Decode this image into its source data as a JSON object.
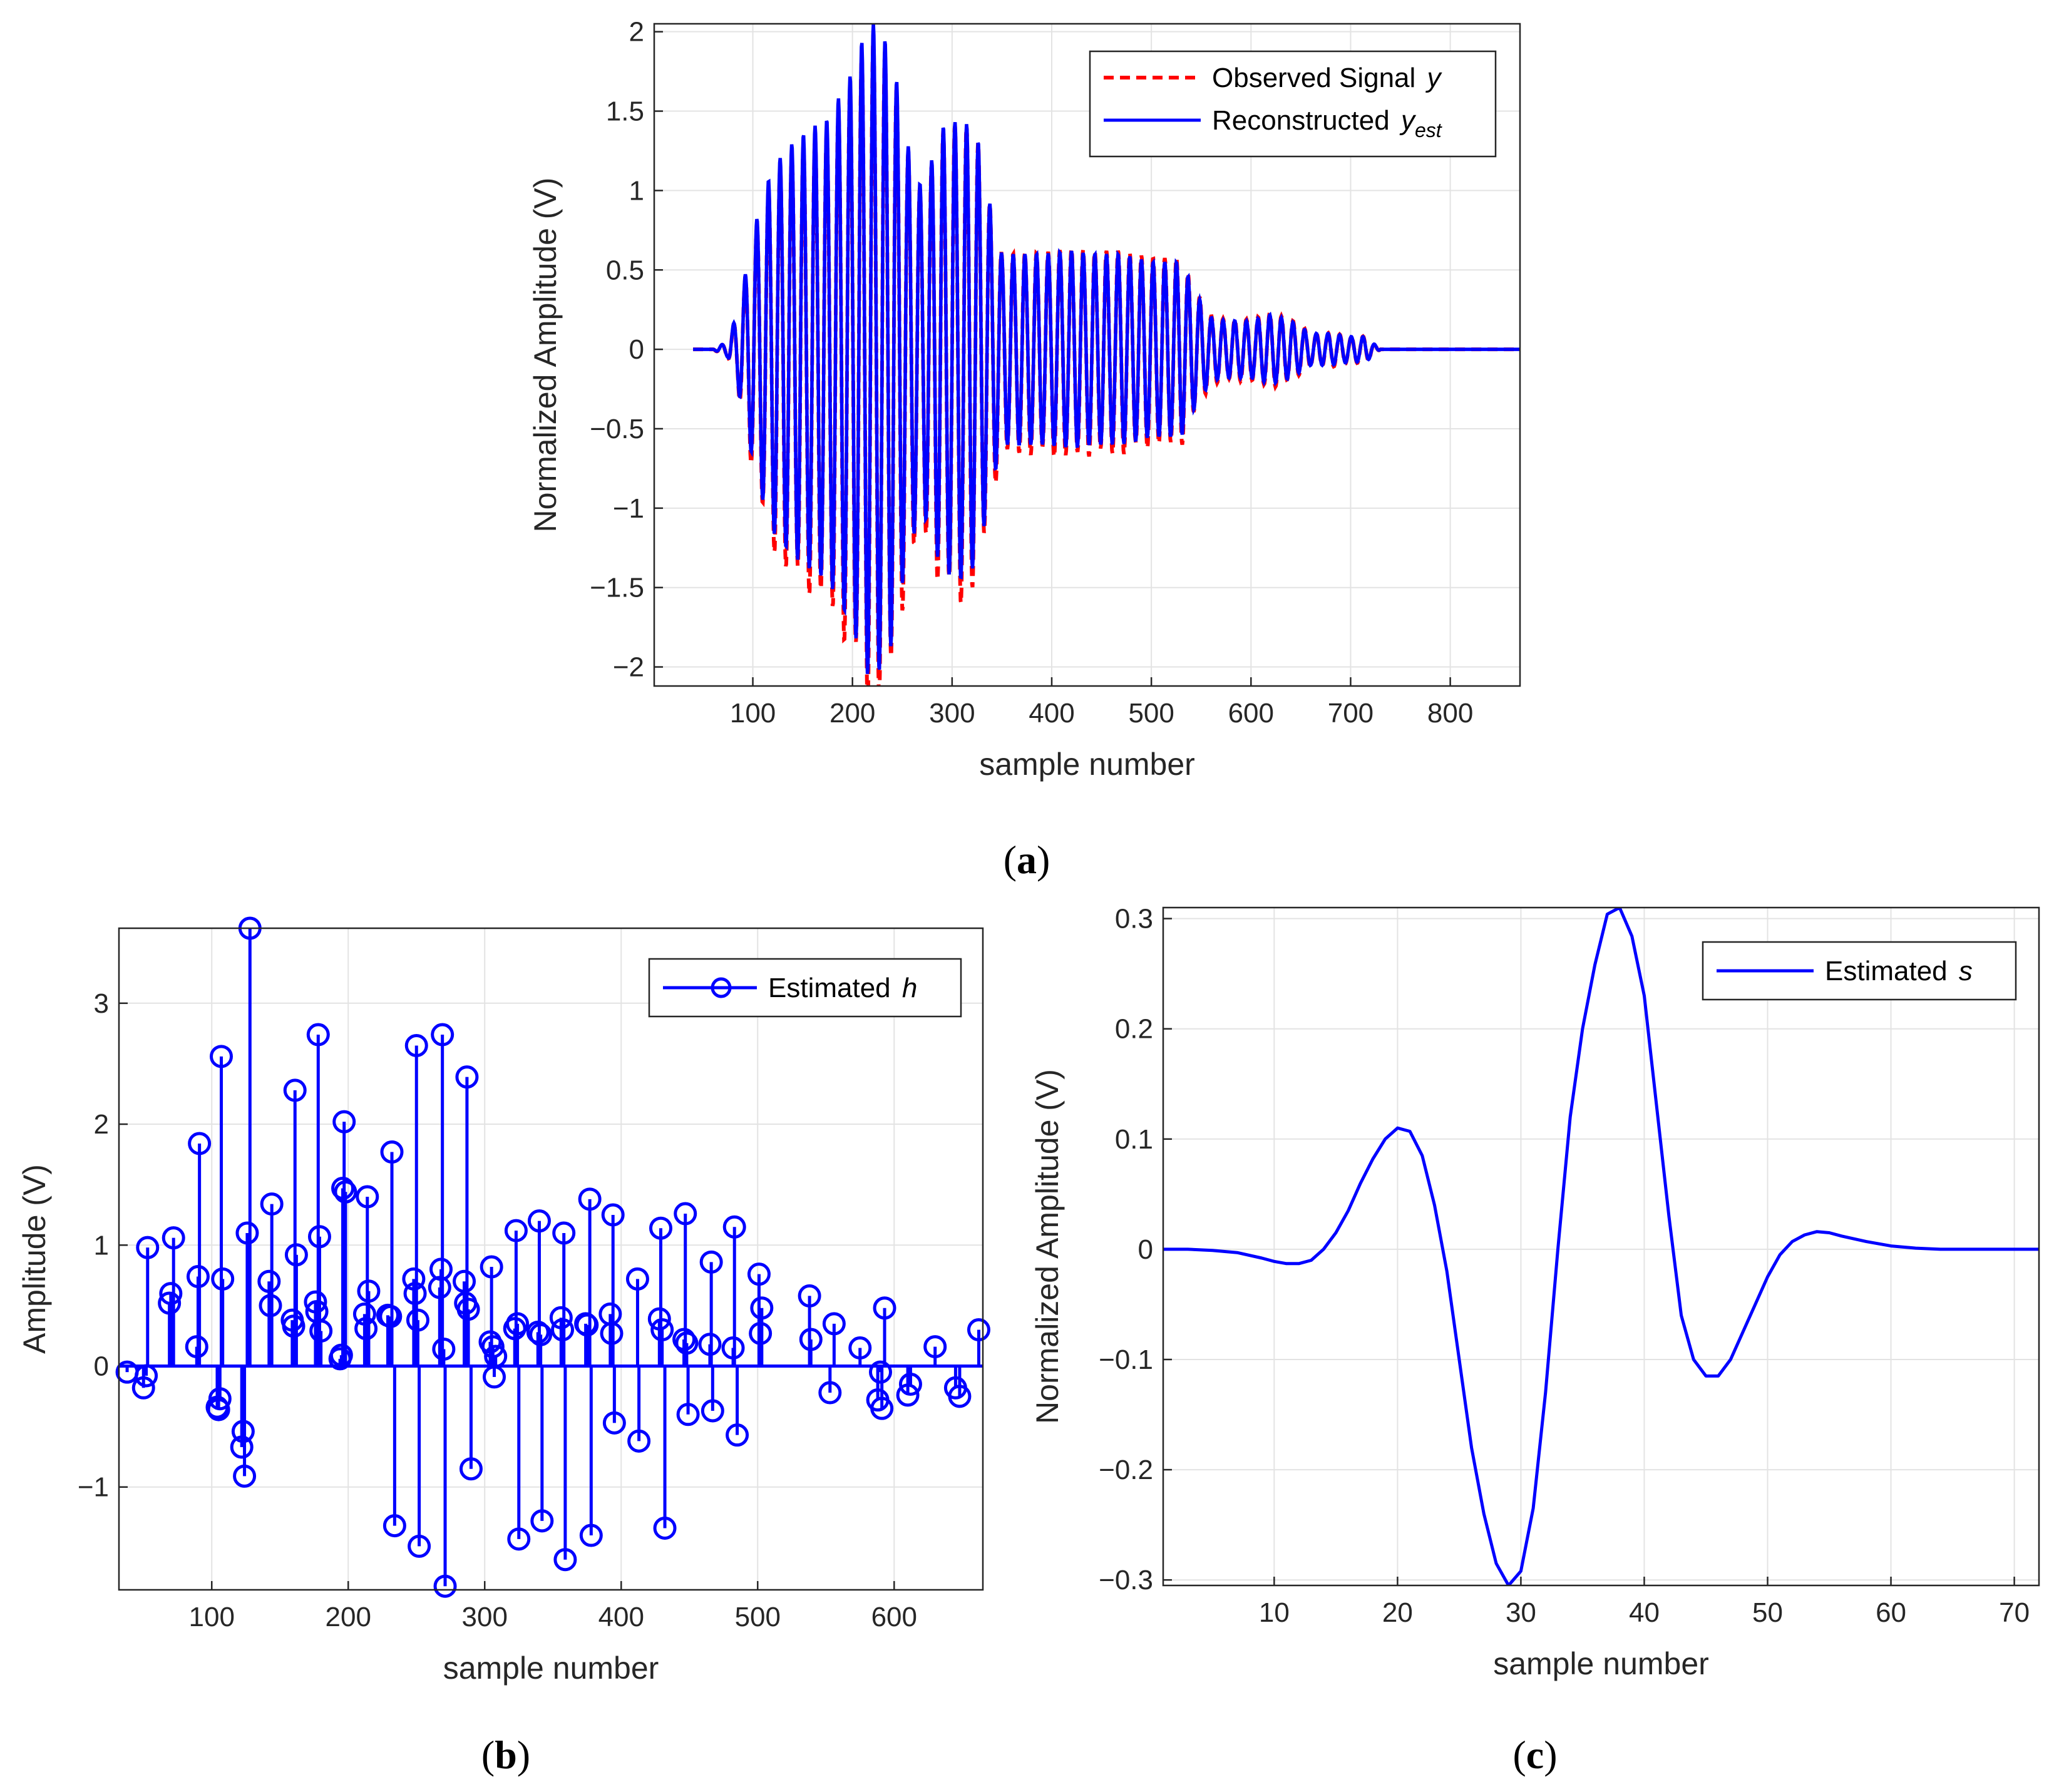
{
  "colors": {
    "observed": "#ff0000",
    "estimate": "#0000ff",
    "axis": "#262626",
    "grid": "#e3e3e3"
  },
  "chart_data": [
    {
      "id": "a",
      "type": "line",
      "panel_label_open": "(",
      "panel_label_letter": "a",
      "panel_label_close": ")",
      "xlabel": "sample number",
      "ylabel": "Normalized Amplitude (V)",
      "xlim": [
        1,
        870
      ],
      "ylim": [
        -2.12,
        2.05
      ],
      "xticks": [
        100,
        200,
        300,
        400,
        500,
        600,
        700,
        800
      ],
      "yticks": [
        -2,
        -1.5,
        -1,
        -0.5,
        0,
        0.5,
        1,
        1.5,
        2
      ],
      "ytick_labels": [
        "−2",
        "−1.5",
        "−1",
        "−0.5",
        "0",
        "0.5",
        "1",
        "1.5",
        "2"
      ],
      "grid": true,
      "legend_position": "top-right",
      "legend": [
        {
          "text": "Observed Signal ",
          "var": "y",
          "sub": ""
        },
        {
          "text": "Reconstructed ",
          "var": "y",
          "sub": "est"
        }
      ],
      "signal_model": {
        "x_start": 40,
        "x_end": 870,
        "onset": 60,
        "offset": 730,
        "period": 11.7,
        "phase_ref": 221,
        "envelope_points": [
          [
            60,
            0
          ],
          [
            75,
            0.05
          ],
          [
            85,
            0.25
          ],
          [
            95,
            0.55
          ],
          [
            105,
            0.85
          ],
          [
            120,
            1.15
          ],
          [
            140,
            1.3
          ],
          [
            160,
            1.4
          ],
          [
            175,
            1.45
          ],
          [
            200,
            1.75
          ],
          [
            215,
            2.05
          ],
          [
            225,
            2.05
          ],
          [
            240,
            1.85
          ],
          [
            255,
            1.3
          ],
          [
            270,
            1.0
          ],
          [
            290,
            1.4
          ],
          [
            310,
            1.45
          ],
          [
            325,
            1.35
          ],
          [
            340,
            0.85
          ],
          [
            350,
            0.6
          ],
          [
            390,
            0.6
          ],
          [
            420,
            0.62
          ],
          [
            440,
            0.6
          ],
          [
            470,
            0.6
          ],
          [
            500,
            0.55
          ],
          [
            530,
            0.55
          ],
          [
            545,
            0.35
          ],
          [
            560,
            0.2
          ],
          [
            575,
            0.18
          ],
          [
            600,
            0.18
          ],
          [
            620,
            0.22
          ],
          [
            640,
            0.18
          ],
          [
            660,
            0.1
          ],
          [
            680,
            0.1
          ],
          [
            700,
            0.08
          ],
          [
            715,
            0.08
          ],
          [
            730,
            0
          ]
        ],
        "observed_trough_extra": 0.12
      }
    },
    {
      "id": "b",
      "type": "stem",
      "panel_label_open": "(",
      "panel_label_letter": "b",
      "panel_label_close": ")",
      "xlabel": "sample number",
      "ylabel": "Amplitude (V)",
      "xlim": [
        32,
        665
      ],
      "ylim": [
        -1.85,
        3.62
      ],
      "xticks": [
        100,
        200,
        300,
        400,
        500,
        600
      ],
      "yticks": [
        -1,
        0,
        1,
        2,
        3
      ],
      "ytick_labels": [
        "−1",
        "0",
        "1",
        "2",
        "3"
      ],
      "grid": true,
      "legend_position": "top-right",
      "legend": [
        {
          "text": "Estimated ",
          "var": "h",
          "sub": ""
        }
      ],
      "points": [
        [
          38,
          -0.05
        ],
        [
          50,
          -0.18
        ],
        [
          52,
          -0.08
        ],
        [
          53,
          0.98
        ],
        [
          69,
          0.52
        ],
        [
          70,
          0.6
        ],
        [
          72,
          1.06
        ],
        [
          89,
          0.16
        ],
        [
          90,
          0.74
        ],
        [
          91,
          1.84
        ],
        [
          104,
          -0.34
        ],
        [
          105,
          -0.36
        ],
        [
          106,
          -0.27
        ],
        [
          107,
          2.56
        ],
        [
          108,
          0.72
        ],
        [
          122,
          -0.67
        ],
        [
          123,
          -0.54
        ],
        [
          124,
          -0.91
        ],
        [
          126,
          1.1
        ],
        [
          128,
          3.62
        ],
        [
          142,
          0.7
        ],
        [
          143,
          0.5
        ],
        [
          144,
          1.34
        ],
        [
          159,
          0.38
        ],
        [
          160,
          0.33
        ],
        [
          161,
          2.28
        ],
        [
          162,
          0.92
        ],
        [
          176,
          0.53
        ],
        [
          177,
          0.45
        ],
        [
          178,
          2.74
        ],
        [
          179,
          1.07
        ],
        [
          180,
          0.29
        ],
        [
          194,
          0.06
        ],
        [
          195,
          0.09
        ],
        [
          196,
          1.47
        ],
        [
          197,
          2.02
        ],
        [
          198,
          1.44
        ],
        [
          212,
          0.43
        ],
        [
          213,
          0.31
        ],
        [
          214,
          1.4
        ],
        [
          215,
          0.62
        ],
        [
          229,
          0.42
        ],
        [
          231,
          0.41
        ],
        [
          232,
          1.77
        ],
        [
          234,
          -1.32
        ],
        [
          248,
          0.72
        ],
        [
          249,
          0.6
        ],
        [
          250,
          2.65
        ],
        [
          251,
          0.38
        ],
        [
          252,
          -1.49
        ],
        [
          267,
          0.65
        ],
        [
          268,
          0.8
        ],
        [
          269,
          2.74
        ],
        [
          270,
          0.14
        ],
        [
          271,
          -1.82
        ],
        [
          285,
          0.7
        ],
        [
          286,
          0.52
        ],
        [
          287,
          2.39
        ],
        [
          288,
          0.47
        ],
        [
          290,
          -0.85
        ],
        [
          304,
          0.2
        ],
        [
          305,
          0.82
        ],
        [
          306,
          0.16
        ],
        [
          307,
          -0.09
        ],
        [
          308,
          0.08
        ],
        [
          322,
          0.31
        ],
        [
          323,
          1.12
        ],
        [
          324,
          0.35
        ],
        [
          325,
          -1.43
        ],
        [
          339,
          0.28
        ],
        [
          340,
          1.2
        ],
        [
          341,
          0.26
        ],
        [
          342,
          -1.28
        ],
        [
          356,
          0.4
        ],
        [
          357,
          0.3
        ],
        [
          358,
          1.1
        ],
        [
          359,
          -1.6
        ],
        [
          374,
          0.35
        ],
        [
          375,
          0.34
        ],
        [
          377,
          1.38
        ],
        [
          378,
          -1.4
        ],
        [
          392,
          0.43
        ],
        [
          393,
          0.27
        ],
        [
          394,
          1.25
        ],
        [
          395,
          -0.47
        ],
        [
          412,
          0.72
        ],
        [
          413,
          -0.62
        ],
        [
          428,
          0.39
        ],
        [
          429,
          1.14
        ],
        [
          430,
          0.3
        ],
        [
          432,
          -1.34
        ],
        [
          446,
          0.22
        ],
        [
          447,
          1.26
        ],
        [
          448,
          0.19
        ],
        [
          449,
          -0.4
        ],
        [
          465,
          0.18
        ],
        [
          466,
          0.86
        ],
        [
          467,
          -0.37
        ],
        [
          482,
          0.15
        ],
        [
          483,
          1.15
        ],
        [
          485,
          -0.57
        ],
        [
          501,
          0.76
        ],
        [
          502,
          0.27
        ],
        [
          503,
          0.48
        ],
        [
          538,
          0.58
        ],
        [
          539,
          0.22
        ],
        [
          553,
          -0.22
        ],
        [
          556,
          0.35
        ],
        [
          575,
          0.15
        ],
        [
          588,
          -0.28
        ],
        [
          590,
          -0.05
        ],
        [
          591,
          -0.35
        ],
        [
          593,
          0.48
        ],
        [
          610,
          -0.24
        ],
        [
          612,
          -0.15
        ],
        [
          630,
          0.16
        ],
        [
          645,
          -0.18
        ],
        [
          648,
          -0.25
        ],
        [
          662,
          0.3
        ]
      ]
    },
    {
      "id": "c",
      "type": "line",
      "panel_label_open": "(",
      "panel_label_letter": "c",
      "panel_label_close": ")",
      "xlabel": "sample number",
      "ylabel": "Normalized Amplitude (V)",
      "xlim": [
        1,
        72
      ],
      "ylim": [
        -0.305,
        0.31
      ],
      "xticks": [
        10,
        20,
        30,
        40,
        50,
        60,
        70
      ],
      "yticks": [
        -0.3,
        -0.2,
        -0.1,
        0,
        0.1,
        0.2,
        0.3
      ],
      "ytick_labels": [
        "−0.3",
        "−0.2",
        "−0.1",
        "0",
        "0.1",
        "0.2",
        "0.3"
      ],
      "grid": true,
      "legend_position": "top-right",
      "legend": [
        {
          "text": "Estimated ",
          "var": "s",
          "sub": ""
        }
      ],
      "x": [
        1,
        3,
        5,
        7,
        9,
        10,
        11,
        12,
        13,
        14,
        15,
        16,
        17,
        18,
        19,
        20,
        21,
        22,
        23,
        24,
        25,
        26,
        27,
        28,
        29,
        30,
        31,
        32,
        33,
        34,
        35,
        36,
        37,
        38,
        39,
        40,
        41,
        42,
        43,
        44,
        45,
        46,
        47,
        48,
        49,
        50,
        51,
        52,
        53,
        54,
        55,
        56,
        58,
        60,
        62,
        64,
        66,
        68,
        70,
        72
      ],
      "y": [
        0,
        0,
        -0.001,
        -0.003,
        -0.008,
        -0.011,
        -0.013,
        -0.013,
        -0.01,
        0,
        0.015,
        0.035,
        0.06,
        0.082,
        0.1,
        0.11,
        0.107,
        0.085,
        0.04,
        -0.02,
        -0.1,
        -0.18,
        -0.24,
        -0.285,
        -0.305,
        -0.292,
        -0.235,
        -0.13,
        0,
        0.12,
        0.2,
        0.258,
        0.304,
        0.31,
        0.284,
        0.23,
        0.13,
        0.03,
        -0.06,
        -0.1,
        -0.115,
        -0.115,
        -0.1,
        -0.075,
        -0.05,
        -0.025,
        -0.005,
        0.007,
        0.013,
        0.016,
        0.015,
        0.012,
        0.007,
        0.003,
        0.001,
        0,
        0,
        0,
        0,
        0
      ]
    }
  ]
}
